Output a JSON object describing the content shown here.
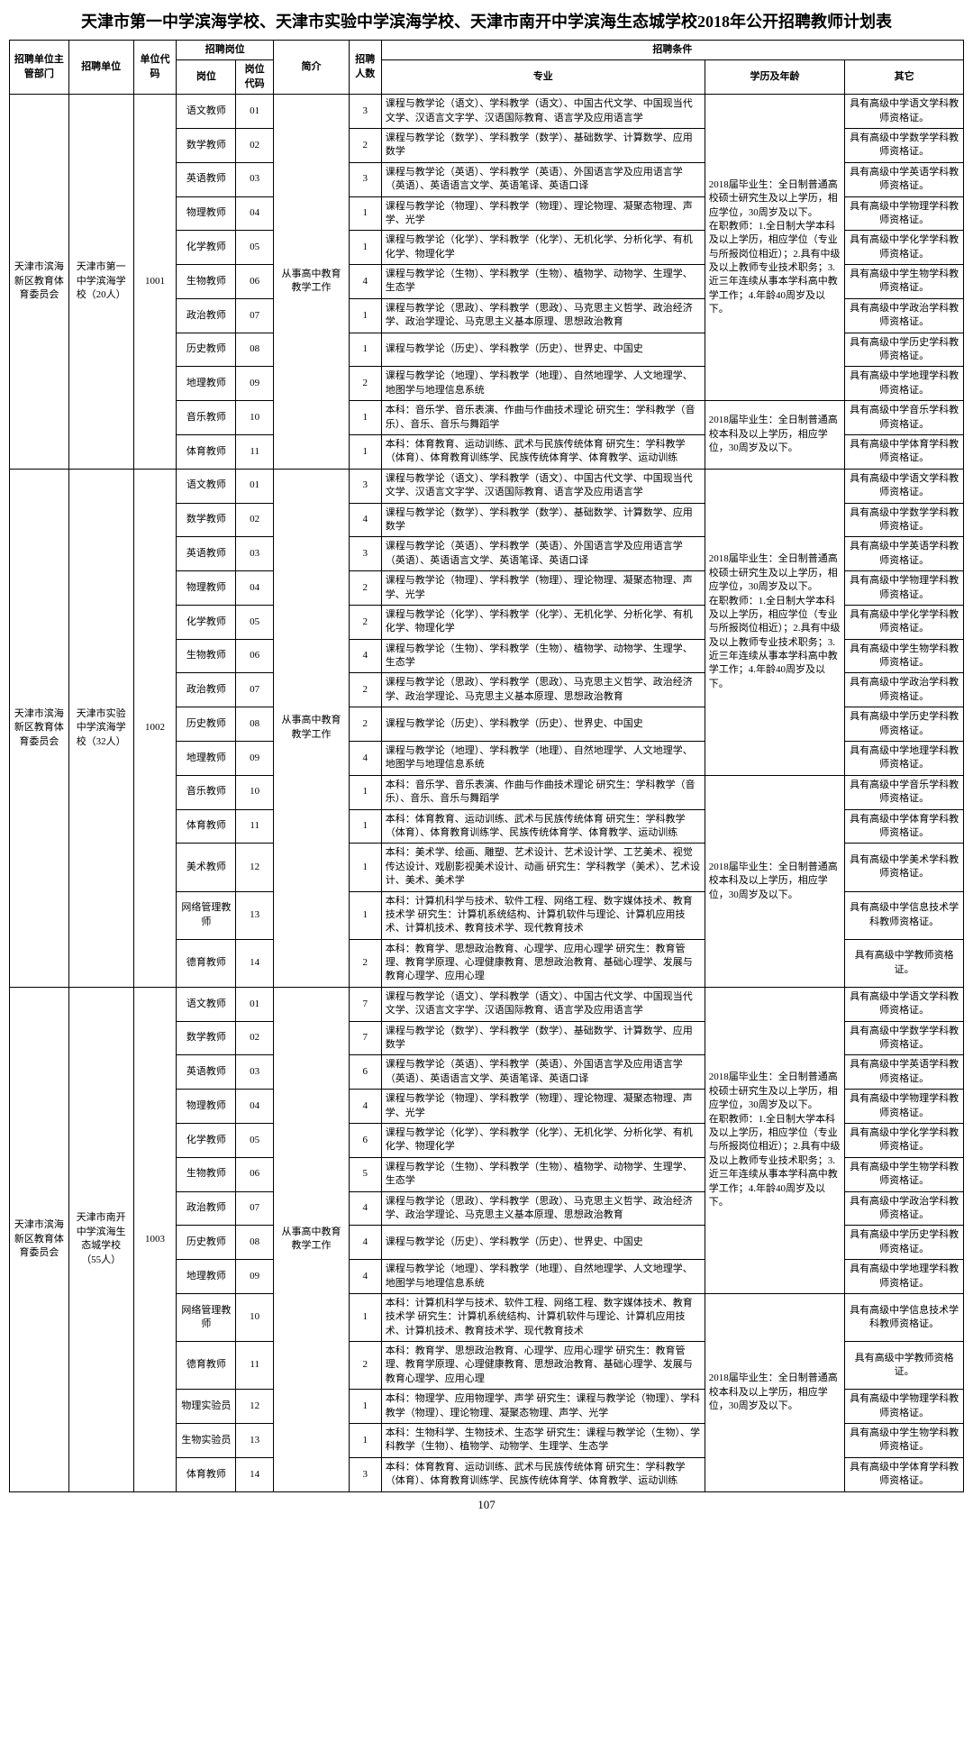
{
  "title": "天津市第一中学滨海学校、天津市实验中学滨海学校、天津市南开中学滨海生态城学校2018年公开招聘教师计划表",
  "page_number": "107",
  "headers": {
    "h1": "招聘单位主管部门",
    "h2": "招聘单位",
    "h3": "单位代码",
    "h4": "招聘岗位",
    "h4a": "岗位",
    "h4b": "岗位代码",
    "h5": "简介",
    "h6": "招聘人数",
    "h7": "招聘条件",
    "h7a": "专业",
    "h7b": "学历及年龄",
    "h7c": "其它"
  },
  "u1": {
    "dept": "天津市滨海新区教育体育委员会",
    "unit": "天津市第一中学滨海学校（20人）",
    "code": "1001",
    "intro": "从事高中教育教学工作",
    "edu1": "2018届毕业生：全日制普通高校硕士研究生及以上学历，相应学位，30周岁及以下。\n在职教师：1.全日制大学本科及以上学历，相应学位（专业与所报岗位相近）；2.具有中级及以上教师专业技术职务；3.近三年连续从事本学科高中教学工作；4.年龄40周岁及以下。",
    "edu2": "2018届毕业生：全日制普通高校本科及以上学历，相应学位，30周岁及以下。",
    "rows": [
      {
        "pos": "语文教师",
        "pc": "01",
        "num": "3",
        "maj": "课程与教学论（语文）、学科教学（语文）、中国古代文学、中国现当代文学、汉语言文字学、汉语国际教育、语言学及应用语言学",
        "other": "具有高级中学语文学科教师资格证。"
      },
      {
        "pos": "数学教师",
        "pc": "02",
        "num": "2",
        "maj": "课程与教学论（数学）、学科教学（数学）、基础数学、计算数学、应用数学",
        "other": "具有高级中学数学学科教师资格证。"
      },
      {
        "pos": "英语教师",
        "pc": "03",
        "num": "3",
        "maj": "课程与教学论（英语）、学科教学（英语）、外国语言学及应用语言学（英语）、英语语言文学、英语笔译、英语口译",
        "other": "具有高级中学英语学科教师资格证。"
      },
      {
        "pos": "物理教师",
        "pc": "04",
        "num": "1",
        "maj": "课程与教学论（物理）、学科教学（物理）、理论物理、凝聚态物理、声学、光学",
        "other": "具有高级中学物理学科教师资格证。"
      },
      {
        "pos": "化学教师",
        "pc": "05",
        "num": "1",
        "maj": "课程与教学论（化学）、学科教学（化学）、无机化学、分析化学、有机化学、物理化学",
        "other": "具有高级中学化学学科教师资格证。"
      },
      {
        "pos": "生物教师",
        "pc": "06",
        "num": "4",
        "maj": "课程与教学论（生物）、学科教学（生物）、植物学、动物学、生理学、生态学",
        "other": "具有高级中学生物学科教师资格证。"
      },
      {
        "pos": "政治教师",
        "pc": "07",
        "num": "1",
        "maj": "课程与教学论（思政）、学科教学（思政）、马克思主义哲学、政治经济学、政治学理论、马克思主义基本原理、思想政治教育",
        "other": "具有高级中学政治学科教师资格证。"
      },
      {
        "pos": "历史教师",
        "pc": "08",
        "num": "1",
        "maj": "课程与教学论（历史）、学科教学（历史）、世界史、中国史",
        "other": "具有高级中学历史学科教师资格证。"
      },
      {
        "pos": "地理教师",
        "pc": "09",
        "num": "2",
        "maj": "课程与教学论（地理）、学科教学（地理）、自然地理学、人文地理学、地图学与地理信息系统",
        "other": "具有高级中学地理学科教师资格证。"
      },
      {
        "pos": "音乐教师",
        "pc": "10",
        "num": "1",
        "maj": "本科：音乐学、音乐表演、作曲与作曲技术理论\n研究生：学科教学（音乐）、音乐、音乐与舞蹈学",
        "other": "具有高级中学音乐学科教师资格证。"
      },
      {
        "pos": "体育教师",
        "pc": "11",
        "num": "1",
        "maj": "本科：体育教育、运动训练、武术与民族传统体育\n研究生：学科教学（体育）、体育教育训练学、民族传统体育学、体育教学、运动训练",
        "other": "具有高级中学体育学科教师资格证。"
      }
    ]
  },
  "u2": {
    "dept": "天津市滨海新区教育体育委员会",
    "unit": "天津市实验中学滨海学校（32人）",
    "code": "1002",
    "intro": "从事高中教育教学工作",
    "edu1": "2018届毕业生：全日制普通高校硕士研究生及以上学历，相应学位，30周岁及以下。\n在职教师：1.全日制大学本科及以上学历，相应学位（专业与所报岗位相近）；2.具有中级及以上教师专业技术职务；3.近三年连续从事本学科高中教学工作；4.年龄40周岁及以下。",
    "edu2": "2018届毕业生：全日制普通高校本科及以上学历，相应学位，30周岁及以下。",
    "rows": [
      {
        "pos": "语文教师",
        "pc": "01",
        "num": "3",
        "maj": "课程与教学论（语文）、学科教学（语文）、中国古代文学、中国现当代文学、汉语言文字学、汉语国际教育、语言学及应用语言学",
        "other": "具有高级中学语文学科教师资格证。"
      },
      {
        "pos": "数学教师",
        "pc": "02",
        "num": "4",
        "maj": "课程与教学论（数学）、学科教学（数学）、基础数学、计算数学、应用数学",
        "other": "具有高级中学数学学科教师资格证。"
      },
      {
        "pos": "英语教师",
        "pc": "03",
        "num": "3",
        "maj": "课程与教学论（英语）、学科教学（英语）、外国语言学及应用语言学（英语）、英语语言文学、英语笔译、英语口译",
        "other": "具有高级中学英语学科教师资格证。"
      },
      {
        "pos": "物理教师",
        "pc": "04",
        "num": "2",
        "maj": "课程与教学论（物理）、学科教学（物理）、理论物理、凝聚态物理、声学、光学",
        "other": "具有高级中学物理学科教师资格证。"
      },
      {
        "pos": "化学教师",
        "pc": "05",
        "num": "2",
        "maj": "课程与教学论（化学）、学科教学（化学）、无机化学、分析化学、有机化学、物理化学",
        "other": "具有高级中学化学学科教师资格证。"
      },
      {
        "pos": "生物教师",
        "pc": "06",
        "num": "4",
        "maj": "课程与教学论（生物）、学科教学（生物）、植物学、动物学、生理学、生态学",
        "other": "具有高级中学生物学科教师资格证。"
      },
      {
        "pos": "政治教师",
        "pc": "07",
        "num": "2",
        "maj": "课程与教学论（思政）、学科教学（思政）、马克思主义哲学、政治经济学、政治学理论、马克思主义基本原理、思想政治教育",
        "other": "具有高级中学政治学科教师资格证。"
      },
      {
        "pos": "历史教师",
        "pc": "08",
        "num": "2",
        "maj": "课程与教学论（历史）、学科教学（历史）、世界史、中国史",
        "other": "具有高级中学历史学科教师资格证。"
      },
      {
        "pos": "地理教师",
        "pc": "09",
        "num": "4",
        "maj": "课程与教学论（地理）、学科教学（地理）、自然地理学、人文地理学、地图学与地理信息系统",
        "other": "具有高级中学地理学科教师资格证。"
      },
      {
        "pos": "音乐教师",
        "pc": "10",
        "num": "1",
        "maj": "本科：音乐学、音乐表演、作曲与作曲技术理论\n研究生：学科教学（音乐）、音乐、音乐与舞蹈学",
        "other": "具有高级中学音乐学科教师资格证。"
      },
      {
        "pos": "体育教师",
        "pc": "11",
        "num": "1",
        "maj": "本科：体育教育、运动训练、武术与民族传统体育\n研究生：学科教学（体育）、体育教育训练学、民族传统体育学、体育教学、运动训练",
        "other": "具有高级中学体育学科教师资格证。"
      },
      {
        "pos": "美术教师",
        "pc": "12",
        "num": "1",
        "maj": "本科：美术学、绘画、雕塑、艺术设计、艺术设计学、工艺美术、视觉传达设计、戏剧影视美术设计、动画\n研究生：学科教学（美术）、艺术设计、美术、美术学",
        "other": "具有高级中学美术学科教师资格证。"
      },
      {
        "pos": "网络管理教师",
        "pc": "13",
        "num": "1",
        "maj": "本科：计算机科学与技术、软件工程、网络工程、数字媒体技术、教育技术学\n研究生：计算机系统结构、计算机软件与理论、计算机应用技术、计算机技术、教育技术学、现代教育技术",
        "other": "具有高级中学信息技术学科教师资格证。"
      },
      {
        "pos": "德育教师",
        "pc": "14",
        "num": "2",
        "maj": "本科：教育学、思想政治教育、心理学、应用心理学\n研究生：教育管理、教育学原理、心理健康教育、思想政治教育、基础心理学、发展与教育心理学、应用心理",
        "other": "具有高级中学教师资格证。"
      }
    ]
  },
  "u3": {
    "dept": "天津市滨海新区教育体育委员会",
    "unit": "天津市南开中学滨海生态城学校（55人）",
    "code": "1003",
    "intro": "从事高中教育教学工作",
    "edu1": "2018届毕业生：全日制普通高校硕士研究生及以上学历，相应学位，30周岁及以下。\n在职教师：1.全日制大学本科及以上学历，相应学位（专业与所报岗位相近）；2.具有中级及以上教师专业技术职务；3.近三年连续从事本学科高中教学工作；4.年龄40周岁及以下。",
    "edu2": "2018届毕业生：全日制普通高校本科及以上学历，相应学位，30周岁及以下。",
    "rows": [
      {
        "pos": "语文教师",
        "pc": "01",
        "num": "7",
        "maj": "课程与教学论（语文）、学科教学（语文）、中国古代文学、中国现当代文学、汉语言文字学、汉语国际教育、语言学及应用语言学",
        "other": "具有高级中学语文学科教师资格证。"
      },
      {
        "pos": "数学教师",
        "pc": "02",
        "num": "7",
        "maj": "课程与教学论（数学）、学科教学（数学）、基础数学、计算数学、应用数学",
        "other": "具有高级中学数学学科教师资格证。"
      },
      {
        "pos": "英语教师",
        "pc": "03",
        "num": "6",
        "maj": "课程与教学论（英语）、学科教学（英语）、外国语言学及应用语言学（英语）、英语语言文学、英语笔译、英语口译",
        "other": "具有高级中学英语学科教师资格证。"
      },
      {
        "pos": "物理教师",
        "pc": "04",
        "num": "4",
        "maj": "课程与教学论（物理）、学科教学（物理）、理论物理、凝聚态物理、声学、光学",
        "other": "具有高级中学物理学科教师资格证。"
      },
      {
        "pos": "化学教师",
        "pc": "05",
        "num": "6",
        "maj": "课程与教学论（化学）、学科教学（化学）、无机化学、分析化学、有机化学、物理化学",
        "other": "具有高级中学化学学科教师资格证。"
      },
      {
        "pos": "生物教师",
        "pc": "06",
        "num": "5",
        "maj": "课程与教学论（生物）、学科教学（生物）、植物学、动物学、生理学、生态学",
        "other": "具有高级中学生物学科教师资格证。"
      },
      {
        "pos": "政治教师",
        "pc": "07",
        "num": "4",
        "maj": "课程与教学论（思政）、学科教学（思政）、马克思主义哲学、政治经济学、政治学理论、马克思主义基本原理、思想政治教育",
        "other": "具有高级中学政治学科教师资格证。"
      },
      {
        "pos": "历史教师",
        "pc": "08",
        "num": "4",
        "maj": "课程与教学论（历史）、学科教学（历史）、世界史、中国史",
        "other": "具有高级中学历史学科教师资格证。"
      },
      {
        "pos": "地理教师",
        "pc": "09",
        "num": "4",
        "maj": "课程与教学论（地理）、学科教学（地理）、自然地理学、人文地理学、地图学与地理信息系统",
        "other": "具有高级中学地理学科教师资格证。"
      },
      {
        "pos": "网络管理教师",
        "pc": "10",
        "num": "1",
        "maj": "本科：计算机科学与技术、软件工程、网络工程、数字媒体技术、教育技术学\n研究生：计算机系统结构、计算机软件与理论、计算机应用技术、计算机技术、教育技术学、现代教育技术",
        "other": "具有高级中学信息技术学科教师资格证。"
      },
      {
        "pos": "德育教师",
        "pc": "11",
        "num": "2",
        "maj": "本科：教育学、思想政治教育、心理学、应用心理学\n研究生：教育管理、教育学原理、心理健康教育、思想政治教育、基础心理学、发展与教育心理学、应用心理",
        "other": "具有高级中学教师资格证。"
      },
      {
        "pos": "物理实验员",
        "pc": "12",
        "num": "1",
        "maj": "本科：物理学、应用物理学、声学\n研究生：课程与教学论（物理）、学科教学（物理）、理论物理、凝聚态物理、声学、光学",
        "other": "具有高级中学物理学科教师资格证。"
      },
      {
        "pos": "生物实验员",
        "pc": "13",
        "num": "1",
        "maj": "本科：生物科学、生物技术、生态学\n研究生：课程与教学论（生物）、学科教学（生物）、植物学、动物学、生理学、生态学",
        "other": "具有高级中学生物学科教师资格证。"
      },
      {
        "pos": "体育教师",
        "pc": "14",
        "num": "3",
        "maj": "本科：体育教育、运动训练、武术与民族传统体育\n研究生：学科教学（体育）、体育教育训练学、民族传统体育学、体育教学、运动训练",
        "other": "具有高级中学体育学科教师资格证。"
      }
    ]
  }
}
